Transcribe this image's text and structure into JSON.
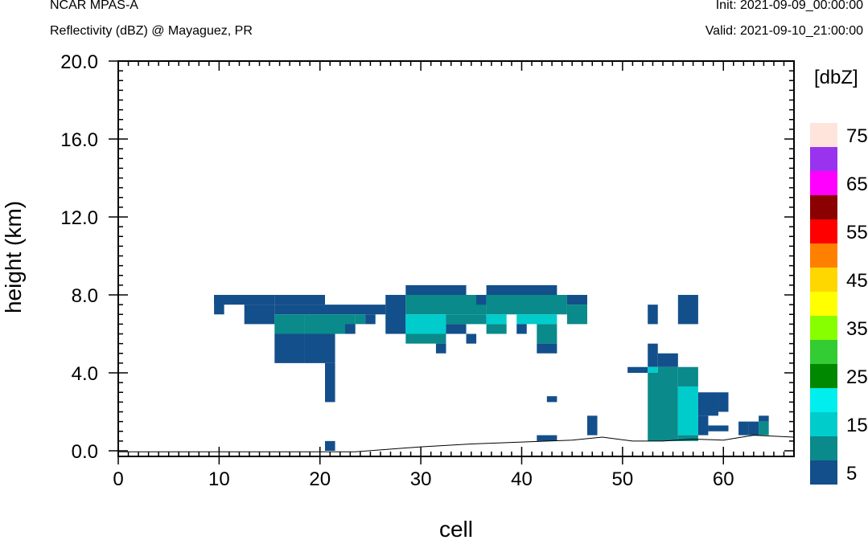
{
  "header": {
    "model": "NCAR MPAS-A",
    "field": "Reflectivity (dBZ) @ Mayaguez, PR",
    "init": "Init: 2021-09-09_00:00:00",
    "valid": "Valid: 2021-09-10_21:00:00"
  },
  "chart_data": {
    "type": "heatmap",
    "xlabel": "cell",
    "ylabel": "height (km)",
    "xlim": [
      0,
      67
    ],
    "ylim": [
      -0.3,
      20.0
    ],
    "x_ticks": [
      "0",
      "10",
      "20",
      "30",
      "40",
      "50",
      "60"
    ],
    "y_ticks": [
      "0.0",
      "4.0",
      "8.0",
      "12.0",
      "16.0",
      "20.0"
    ],
    "colorbar": {
      "units": "[dbZ]",
      "labels": [
        "5",
        "15",
        "25",
        "35",
        "45",
        "55",
        "65",
        "75"
      ],
      "colors": [
        "#134f8a",
        "#0a8a8a",
        "#00cccc",
        "#00eeee",
        "#008800",
        "#33cc33",
        "#88ff00",
        "#ffff00",
        "#ffd700",
        "#ff8000",
        "#ff0000",
        "#8b0000",
        "#ff00ff",
        "#9933ee",
        "#ffe4dc"
      ]
    },
    "cells": [
      [
        9.5,
        10.5,
        7.0,
        8.0,
        0
      ],
      [
        9.5,
        15.5,
        7.5,
        8.0,
        0
      ],
      [
        15.5,
        20.5,
        7.5,
        8.0,
        0
      ],
      [
        12.5,
        15.5,
        6.5,
        7.5,
        0
      ],
      [
        15.5,
        20.5,
        7.0,
        7.5,
        0
      ],
      [
        20.5,
        26.5,
        7.0,
        7.5,
        0
      ],
      [
        15.5,
        18.5,
        6.0,
        7.0,
        1
      ],
      [
        18.5,
        23.5,
        6.0,
        7.0,
        1
      ],
      [
        23.5,
        24.5,
        6.5,
        7.0,
        1
      ],
      [
        22.5,
        23.5,
        6.0,
        6.5,
        0
      ],
      [
        24.5,
        25.5,
        6.5,
        7.0,
        0
      ],
      [
        15.5,
        18.5,
        4.5,
        6.0,
        0
      ],
      [
        18.5,
        21.5,
        4.5,
        6.0,
        0
      ],
      [
        20.5,
        21.5,
        2.5,
        4.5,
        0
      ],
      [
        20.5,
        21.5,
        0.0,
        0.5,
        0
      ],
      [
        26.5,
        28.5,
        6.0,
        8.0,
        0
      ],
      [
        28.5,
        34.5,
        8.0,
        8.5,
        0
      ],
      [
        28.5,
        36.5,
        7.0,
        8.0,
        1
      ],
      [
        28.5,
        32.5,
        6.0,
        7.0,
        2
      ],
      [
        32.5,
        36.5,
        6.5,
        7.0,
        1
      ],
      [
        28.5,
        32.5,
        5.5,
        6.0,
        1
      ],
      [
        32.5,
        34.5,
        6.0,
        6.5,
        0
      ],
      [
        31.5,
        32.5,
        5.0,
        5.5,
        0
      ],
      [
        34.5,
        35.5,
        5.5,
        6.0,
        0
      ],
      [
        36.5,
        43.5,
        8.0,
        8.5,
        0
      ],
      [
        35.5,
        36.5,
        7.5,
        8.0,
        0
      ],
      [
        36.5,
        44.5,
        7.0,
        8.0,
        1
      ],
      [
        36.5,
        38.5,
        6.5,
        7.0,
        2
      ],
      [
        36.5,
        38.5,
        6.0,
        6.5,
        1
      ],
      [
        39.5,
        43.5,
        6.5,
        7.0,
        2
      ],
      [
        39.5,
        40.5,
        6.0,
        6.5,
        0
      ],
      [
        41.5,
        43.5,
        5.5,
        6.5,
        1
      ],
      [
        41.5,
        43.5,
        5.0,
        5.5,
        0
      ],
      [
        44.5,
        46.5,
        7.5,
        8.0,
        0
      ],
      [
        44.5,
        46.5,
        6.5,
        7.5,
        1
      ],
      [
        42.5,
        43.5,
        2.5,
        2.8,
        0
      ],
      [
        46.5,
        47.5,
        0.8,
        1.8,
        0
      ],
      [
        41.5,
        43.5,
        0.5,
        0.8,
        0
      ],
      [
        52.5,
        53.5,
        6.5,
        7.5,
        0
      ],
      [
        55.5,
        57.5,
        6.5,
        8.0,
        0
      ],
      [
        50.5,
        52.5,
        4.0,
        4.3,
        0
      ],
      [
        52.5,
        53.5,
        4.3,
        5.5,
        0
      ],
      [
        53.5,
        55.5,
        4.3,
        5.0,
        0
      ],
      [
        52.5,
        53.5,
        4.0,
        4.3,
        2
      ],
      [
        53.5,
        55.5,
        4.0,
        4.3,
        1
      ],
      [
        55.5,
        57.5,
        4.0,
        4.3,
        1
      ],
      [
        52.5,
        55.5,
        0.5,
        4.0,
        1
      ],
      [
        55.5,
        57.5,
        3.3,
        4.0,
        1
      ],
      [
        55.5,
        57.5,
        0.8,
        3.3,
        2
      ],
      [
        55.5,
        57.5,
        0.5,
        0.8,
        1
      ],
      [
        57.5,
        59.5,
        1.8,
        3.0,
        0
      ],
      [
        59.5,
        60.5,
        2.0,
        3.0,
        0
      ],
      [
        57.5,
        58.5,
        0.8,
        1.8,
        0
      ],
      [
        58.5,
        60.5,
        1.0,
        1.3,
        0
      ],
      [
        61.5,
        62.5,
        0.8,
        1.5,
        0
      ],
      [
        62.5,
        63.5,
        0.8,
        1.5,
        0
      ],
      [
        63.5,
        64.5,
        1.5,
        1.8,
        0
      ],
      [
        63.5,
        64.5,
        0.8,
        1.5,
        1
      ]
    ],
    "terrain": [
      [
        0,
        -0.05
      ],
      [
        23.5,
        -0.05
      ],
      [
        30,
        0.2
      ],
      [
        35,
        0.35
      ],
      [
        40,
        0.45
      ],
      [
        45,
        0.55
      ],
      [
        48,
        0.7
      ],
      [
        51,
        0.5
      ],
      [
        54,
        0.5
      ],
      [
        57,
        0.6
      ],
      [
        60,
        0.55
      ],
      [
        63,
        0.8
      ],
      [
        67,
        0.7
      ]
    ]
  }
}
